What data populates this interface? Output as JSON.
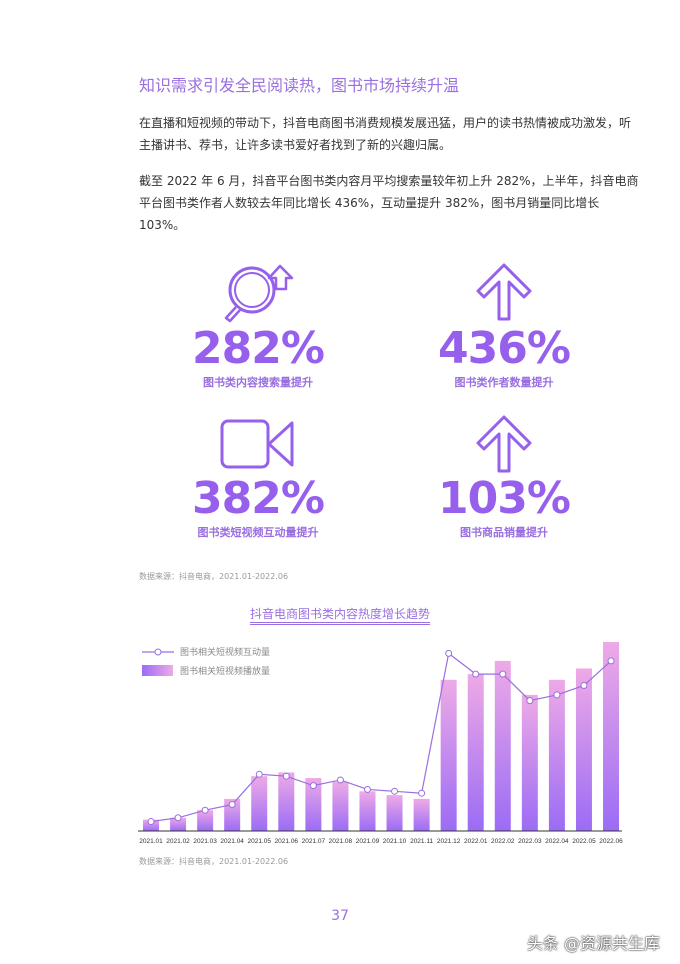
{
  "heading": "知识需求引发全民阅读热，图书市场持续升温",
  "paragraphs": [
    "在直播和短视频的带动下，抖音电商图书消费规模发展迅猛，用户的读书热情被成功激发，听主播讲书、荐书，让许多读书爱好者找到了新的兴趣归属。",
    "截至 2022 年 6 月，抖音平台图书类内容月平均搜索量较年初上升 282%，上半年，抖音电商平台图书类作者人数较去年同比增长 436%，互动量提升 382%，图书月销量同比增长 103%。"
  ],
  "stats": [
    {
      "value": "282%",
      "label": "图书类内容搜索量提升",
      "icon": "search-growth-icon"
    },
    {
      "value": "436%",
      "label": "图书类作者数量提升",
      "icon": "arrow-up-icon"
    },
    {
      "value": "382%",
      "label": "图书类短视频互动量提升",
      "icon": "video-camera-icon"
    },
    {
      "value": "103%",
      "label": "图书商品销量提升",
      "icon": "arrow-up-icon"
    }
  ],
  "source_1": "数据来源：抖音电商，2021.01-2022.06",
  "source_2": "数据来源：抖音电商，2021.01-2022.06",
  "page_number": "37",
  "watermark": "头条 @资源共生库",
  "colors": {
    "accent": "#9660ec",
    "bar_bottom": "#9b6cf5",
    "bar_top": "#eeaae6"
  },
  "chart_data": {
    "type": "bar",
    "title": "抖音电商图书类内容热度增长趋势",
    "categories": [
      "2021.01",
      "2021.02",
      "2021.03",
      "2021.04",
      "2021.05",
      "2021.06",
      "2021.07",
      "2021.08",
      "2021.09",
      "2021.10",
      "2021.11",
      "2021.12",
      "2022.01",
      "2022.02",
      "2022.03",
      "2022.04",
      "2022.05",
      "2022.06"
    ],
    "series": [
      {
        "name": "图书相关短视频播放量",
        "type": "bar",
        "values": [
          6,
          7,
          11,
          17,
          29,
          31,
          28,
          26,
          21,
          19,
          17,
          80,
          83,
          90,
          72,
          80,
          86,
          100
        ]
      },
      {
        "name": "图书相关短视频互动量",
        "type": "line",
        "values": [
          5,
          7,
          11,
          14,
          30,
          29,
          24,
          27,
          22,
          21,
          20,
          94,
          83,
          83,
          69,
          72,
          77,
          90
        ]
      }
    ],
    "ylim": [
      0,
      100
    ],
    "y_axis_shown": false,
    "grid": false,
    "legend": "top-left"
  }
}
